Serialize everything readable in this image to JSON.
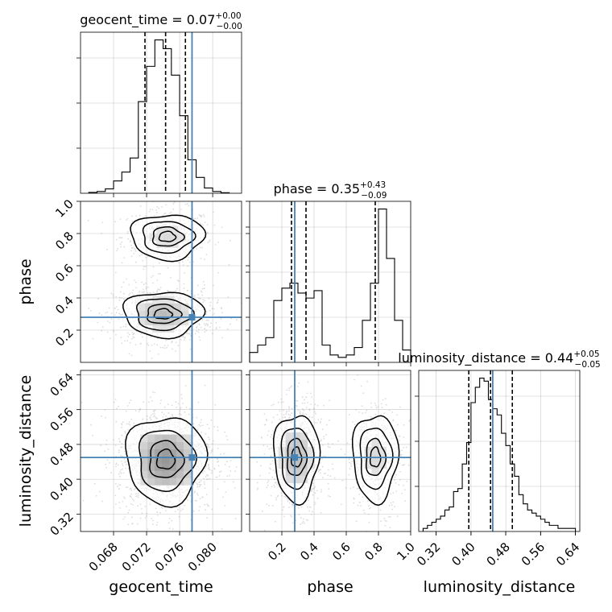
{
  "chart_data": {
    "type": "corner",
    "parameters": [
      "geocent_time",
      "phase",
      "luminosity_distance"
    ],
    "truths": {
      "geocent_time": 0.0775,
      "phase": 0.28,
      "luminosity_distance": 0.45
    },
    "marginals": [
      {
        "parameter": "geocent_time",
        "title": {
          "main": "geocent_time = 0.07",
          "sup": "+0.00",
          "sub": "−0.00"
        },
        "xlim": [
          0.064,
          0.0835
        ],
        "quantiles": [
          0.0718,
          0.0743,
          0.0767
        ],
        "x_ticks": [
          0.068,
          0.072,
          0.076,
          0.08
        ],
        "x_tick_labels": [
          "0.068",
          "0.072",
          "0.076",
          "0.080"
        ],
        "xlabel": "geocent_time",
        "hist_edges": [
          0.065,
          0.066,
          0.067,
          0.068,
          0.069,
          0.07,
          0.071,
          0.072,
          0.073,
          0.074,
          0.075,
          0.076,
          0.077,
          0.078,
          0.079,
          0.08,
          0.081,
          0.082
        ],
        "hist_counts": [
          0.5,
          1.0,
          2.5,
          7,
          12,
          20,
          52,
          72,
          87,
          82,
          67,
          44,
          19,
          9,
          3,
          1,
          0.3
        ]
      },
      {
        "parameter": "phase",
        "title": {
          "main": "phase = 0.35",
          "sup": "+0.43",
          "sub": "−0.09"
        },
        "xlim": [
          0.0,
          1.0
        ],
        "quantiles": [
          0.26,
          0.35,
          0.78
        ],
        "x_ticks": [
          0.2,
          0.4,
          0.6,
          0.8,
          1.0
        ],
        "x_tick_labels": [
          "0.2",
          "0.4",
          "0.6",
          "0.8",
          "1.0"
        ],
        "xlabel": "phase",
        "hist_edges": [
          0.0,
          0.05,
          0.1,
          0.15,
          0.2,
          0.25,
          0.3,
          0.35,
          0.4,
          0.45,
          0.5,
          0.55,
          0.6,
          0.65,
          0.7,
          0.75,
          0.8,
          0.85,
          0.9,
          0.95,
          1.0
        ],
        "hist_counts": [
          4,
          7,
          10,
          25,
          30,
          32,
          28,
          26,
          29,
          7,
          3,
          2,
          3,
          6,
          17,
          32,
          62,
          42,
          17,
          5
        ]
      },
      {
        "parameter": "luminosity_distance",
        "title": {
          "main": "luminosity_distance = 0.44",
          "sup": "+0.05",
          "sub": "−0.05"
        },
        "xlim": [
          0.28,
          0.65
        ],
        "quantiles": [
          0.395,
          0.445,
          0.495
        ],
        "x_ticks": [
          0.32,
          0.4,
          0.48,
          0.56,
          0.64
        ],
        "x_tick_labels": [
          "0.32",
          "0.40",
          "0.48",
          "0.56",
          "0.64"
        ],
        "xlabel": "luminosity_distance",
        "hist_edges": [
          0.29,
          0.3,
          0.31,
          0.32,
          0.33,
          0.34,
          0.35,
          0.36,
          0.37,
          0.38,
          0.39,
          0.4,
          0.41,
          0.42,
          0.43,
          0.44,
          0.45,
          0.46,
          0.47,
          0.48,
          0.49,
          0.5,
          0.51,
          0.52,
          0.53,
          0.54,
          0.55,
          0.56,
          0.57,
          0.58,
          0.59,
          0.6,
          0.61,
          0.62,
          0.63,
          0.64
        ],
        "hist_counts": [
          1,
          2,
          3,
          4,
          5,
          7,
          8,
          13,
          14,
          22,
          29,
          42,
          47,
          50,
          49,
          43,
          40,
          38,
          32,
          28,
          22,
          18,
          12,
          9,
          7,
          6,
          5,
          4,
          3,
          2,
          2,
          1,
          1,
          1,
          1
        ]
      }
    ],
    "joints": [
      {
        "x": "geocent_time",
        "y": "phase",
        "ylim": [
          0.0,
          1.0
        ],
        "y_ticks": [
          0.2,
          0.4,
          0.6,
          0.8,
          1.0
        ],
        "y_tick_labels": [
          "0.2",
          "0.4",
          "0.6",
          "0.8",
          "1.0"
        ],
        "ylabel": "phase",
        "modes": [
          {
            "x": 0.0745,
            "y": 0.78,
            "sx": 0.0022,
            "sy": 0.07,
            "weight": 0.35
          },
          {
            "x": 0.074,
            "y": 0.3,
            "sx": 0.0024,
            "sy": 0.07,
            "weight": 0.65
          }
        ]
      },
      {
        "x": "geocent_time",
        "y": "luminosity_distance",
        "ylim": [
          0.28,
          0.65
        ],
        "y_ticks": [
          0.32,
          0.4,
          0.48,
          0.56,
          0.64
        ],
        "y_tick_labels": [
          "0.32",
          "0.40",
          "0.48",
          "0.56",
          "0.64"
        ],
        "ylabel": "luminosity_distance",
        "modes": [
          {
            "x": 0.0743,
            "y": 0.445,
            "sx": 0.0024,
            "sy": 0.05,
            "weight": 1.0
          }
        ]
      },
      {
        "x": "phase",
        "y": "luminosity_distance",
        "ylim": [
          0.28,
          0.65
        ],
        "modes": [
          {
            "x": 0.29,
            "y": 0.45,
            "sx": 0.07,
            "sy": 0.05,
            "weight": 0.65
          },
          {
            "x": 0.78,
            "y": 0.45,
            "sx": 0.07,
            "sy": 0.05,
            "weight": 0.35
          }
        ]
      }
    ],
    "colors": {
      "truth": "#4682b4",
      "hist": "#000000",
      "points": "#9a9a9a",
      "grid": "#b0b0b0"
    },
    "grid": true
  }
}
